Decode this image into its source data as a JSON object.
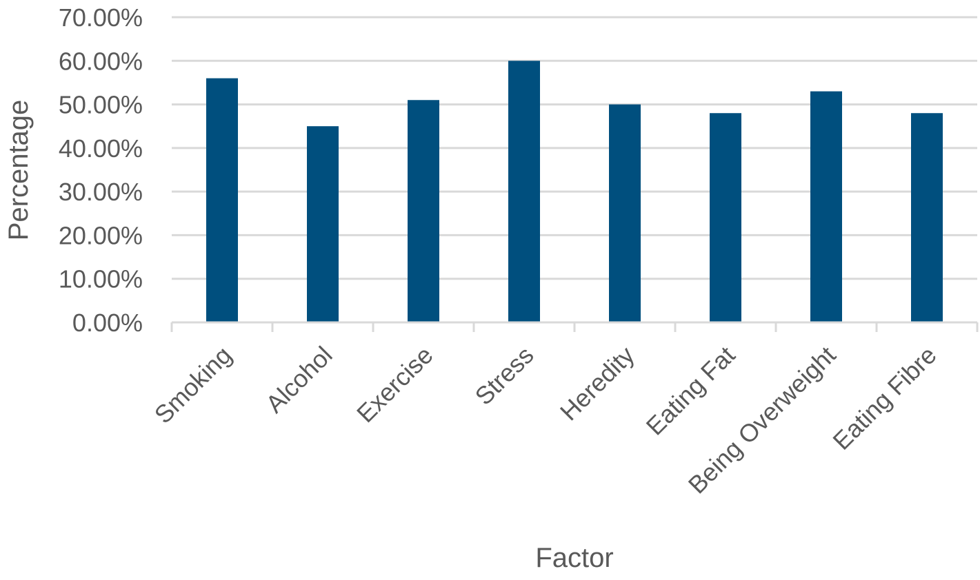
{
  "chart_data": {
    "type": "bar",
    "title": "",
    "xlabel": "Factor",
    "ylabel": "Percentage",
    "categories": [
      "Smoking",
      "Alcohol",
      "Exercise",
      "Stress",
      "Heredity",
      "Eating Fat",
      "Being Overweight",
      "Eating Fibre"
    ],
    "values": [
      0.56,
      0.45,
      0.51,
      0.6,
      0.5,
      0.48,
      0.53,
      0.48
    ],
    "ylim": [
      0,
      0.7
    ],
    "yticks": [
      0,
      0.1,
      0.2,
      0.3,
      0.4,
      0.5,
      0.6,
      0.7
    ],
    "ytick_labels": [
      "0.00%",
      "10.00%",
      "20.00%",
      "30.00%",
      "40.00%",
      "50.00%",
      "60.00%",
      "70.00%"
    ],
    "grid": true,
    "legend": "none",
    "colors": {
      "bar": "#004F7E",
      "grid": "#D9D9D9",
      "text": "#595959"
    }
  }
}
